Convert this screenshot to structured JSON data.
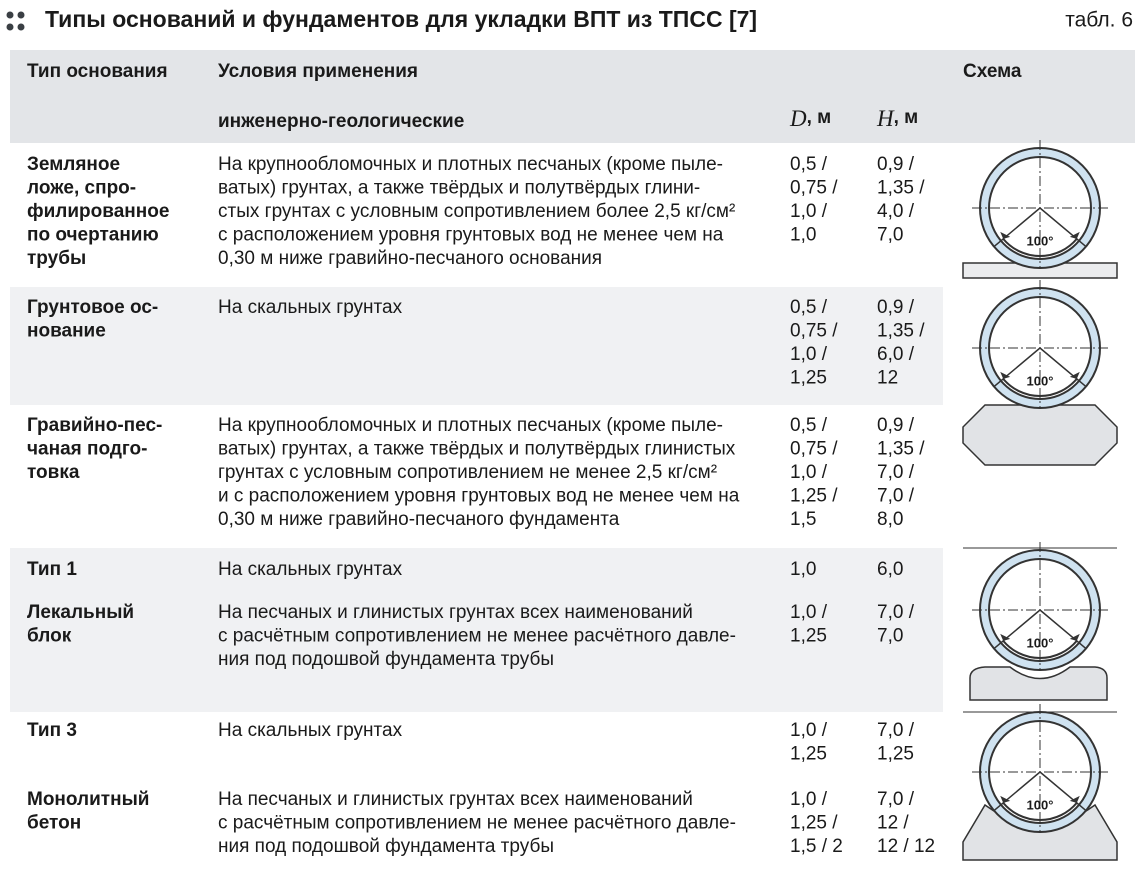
{
  "header": {
    "title": "Типы оснований и фундаментов для укладки ВПТ из ТПСС [7]",
    "table_ref": "табл. 6"
  },
  "table": {
    "columns": {
      "type": "Тип основания",
      "conditions": "Условия применения",
      "geo": "инженерно-геологические",
      "d_symbol": "D",
      "d_unit": ", м",
      "h_symbol": "H",
      "h_unit": ", м",
      "schema": "Схема"
    },
    "rows": [
      {
        "type": [
          "Земляное",
          "ложе, спро-",
          "филированное",
          "по очертанию",
          "трубы"
        ],
        "conditions": [
          "На крупнообломочных и плотных песчаных (кроме пыле-",
          "ватых) грунтах, а также твёрдых и полутвёрдых глини-",
          "стых грунтах с условным сопротивлением более 2,5 кг/см²",
          "с расположением уровня грунтовых вод не менее чем на",
          "0,30 м ниже гравийно-песчаного основания"
        ],
        "d": [
          "0,5 /",
          "0,75 /",
          "1,0 /",
          "1,0"
        ],
        "h": [
          "0,9 /",
          "1,35 /",
          "4,0 /",
          "7,0"
        ]
      },
      {
        "type": [
          "Грунтовое ос-",
          "нование"
        ],
        "conditions": [
          "На скальных грунтах"
        ],
        "d": [
          "0,5 /",
          "0,75 /",
          "1,0 /",
          "1,25"
        ],
        "h": [
          "0,9 /",
          "1,35 /",
          "6,0 /",
          "12"
        ]
      },
      {
        "type": [
          "Гравийно-пес-",
          "чаная подго-",
          "товка"
        ],
        "conditions": [
          "На крупнообломочных и плотных песчаных (кроме пыле-",
          "ватых) грунтах, а также твёрдых и полутвёрдых глинистых",
          "грунтах с условным сопротивлением не менее 2,5 кг/см²",
          "и с расположением уровня грунтовых вод не менее чем на",
          "0,30 м ниже гравийно-песчаного фундамента"
        ],
        "d": [
          "0,5 /",
          "0,75 /",
          "1,0 /",
          "1,25 /",
          "1,5"
        ],
        "h": [
          "0,9 /",
          "1,35 /",
          "7,0 /",
          "7,0 /",
          "8,0"
        ]
      },
      {
        "type": [
          "Тип 1"
        ],
        "conditions": [
          "На скальных грунтах"
        ],
        "d": [
          "1,0"
        ],
        "h": [
          "6,0"
        ]
      },
      {
        "type": [
          "Лекальный",
          "блок"
        ],
        "conditions": [
          "На песчаных и глинистых грунтах всех наименований",
          "с расчётным сопротивлением не менее расчётного давле-",
          "ния под подошвой фундамента трубы"
        ],
        "d": [
          "1,0 /",
          "1,25"
        ],
        "h": [
          "7,0 /",
          "7,0"
        ]
      },
      {
        "type": [
          "Тип 3"
        ],
        "conditions": [
          "На скальных грунтах"
        ],
        "d": [
          "1,0 /",
          "1,25"
        ],
        "h": [
          "7,0 /",
          "1,25"
        ]
      },
      {
        "type": [
          "Монолитный",
          "бетон"
        ],
        "conditions": [
          "На песчаных и глинистых грунтах всех наименований",
          "с расчётным сопротивлением не менее расчётного давле-",
          "ния под подошвой фундамента трубы"
        ],
        "d": [
          "1,0 /",
          "1,25 /",
          "1,5 / 2"
        ],
        "h": [
          "7,0 /",
          "12 /",
          "12 / 12"
        ]
      }
    ],
    "schemes": [
      {
        "angle": "100°"
      },
      {
        "angle": "100°"
      },
      {
        "angle": "100°"
      },
      {
        "angle": "100°"
      }
    ]
  }
}
